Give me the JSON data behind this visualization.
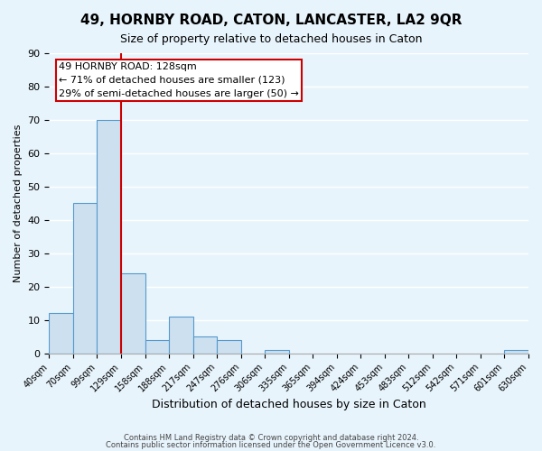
{
  "title": "49, HORNBY ROAD, CATON, LANCASTER, LA2 9QR",
  "subtitle": "Size of property relative to detached houses in Caton",
  "xlabel": "Distribution of detached houses by size in Caton",
  "ylabel": "Number of detached properties",
  "bar_color": "#cce0f0",
  "bar_edge_color": "#5599cc",
  "bin_labels": [
    "40sqm",
    "70sqm",
    "99sqm",
    "129sqm",
    "158sqm",
    "188sqm",
    "217sqm",
    "247sqm",
    "276sqm",
    "306sqm",
    "335sqm",
    "365sqm",
    "394sqm",
    "424sqm",
    "453sqm",
    "483sqm",
    "512sqm",
    "542sqm",
    "571sqm",
    "601sqm",
    "630sqm"
  ],
  "bar_heights": [
    12,
    45,
    70,
    24,
    4,
    11,
    5,
    4,
    0,
    1,
    0,
    0,
    0,
    0,
    0,
    0,
    0,
    0,
    0,
    1
  ],
  "ylim": [
    0,
    90
  ],
  "yticks": [
    0,
    10,
    20,
    30,
    40,
    50,
    60,
    70,
    80,
    90
  ],
  "red_line_x": 3,
  "annotation_title": "49 HORNBY ROAD: 128sqm",
  "annotation_line1": "← 71% of detached houses are smaller (123)",
  "annotation_line2": "29% of semi-detached houses are larger (50) →",
  "annotation_box_color": "#ffffff",
  "annotation_box_edge_color": "#cc0000",
  "footer_line1": "Contains HM Land Registry data © Crown copyright and database right 2024.",
  "footer_line2": "Contains public sector information licensed under the Open Government Licence v3.0.",
  "background_color": "#e8f4fc",
  "grid_color": "#ffffff"
}
